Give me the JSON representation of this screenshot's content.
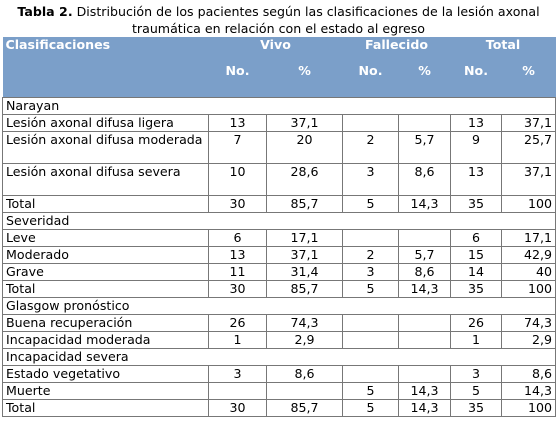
{
  "caption": {
    "label": "Tabla 2.",
    "text": " Distribución de los pacientes según las clasificaciones de la lesión axonal traumática en relación con el estado al egreso"
  },
  "header": {
    "col0": "Clasificaciones",
    "vivo": "Vivo",
    "fallecido": "Fallecido",
    "total": "Total",
    "no": "No.",
    "pct": "%"
  },
  "rows": [
    {
      "label": "Narayan",
      "section": true
    },
    {
      "label": "Lesión axonal difusa ligera",
      "v_no": "13",
      "v_pct": "37,1",
      "f_no": "",
      "f_pct": "",
      "t_no": "13",
      "t_pct": "37,1"
    },
    {
      "label": "Lesión axonal difusa moderada",
      "v_no": "7",
      "v_pct": "20",
      "f_no": "2",
      "f_pct": "5,7",
      "t_no": "9",
      "t_pct": "25,7",
      "tall": true
    },
    {
      "label": "Lesión axonal difusa severa",
      "v_no": "10",
      "v_pct": "28,6",
      "f_no": "3",
      "f_pct": "8,6",
      "t_no": "13",
      "t_pct": "37,1",
      "tall": true
    },
    {
      "label": "Total",
      "v_no": "30",
      "v_pct": "85,7",
      "f_no": "5",
      "f_pct": "14,3",
      "t_no": "35",
      "t_pct": "100"
    },
    {
      "label": "Severidad",
      "section": true
    },
    {
      "label": "Leve",
      "v_no": "6",
      "v_pct": "17,1",
      "f_no": "",
      "f_pct": "",
      "t_no": "6",
      "t_pct": "17,1"
    },
    {
      "label": "Moderado",
      "v_no": "13",
      "v_pct": "37,1",
      "f_no": "2",
      "f_pct": "5,7",
      "t_no": "15",
      "t_pct": "42,9"
    },
    {
      "label": "Grave",
      "v_no": "11",
      "v_pct": "31,4",
      "f_no": "3",
      "f_pct": "8,6",
      "t_no": "14",
      "t_pct": "40"
    },
    {
      "label": "Total",
      "v_no": "30",
      "v_pct": "85,7",
      "f_no": "5",
      "f_pct": "14,3",
      "t_no": "35",
      "t_pct": "100"
    },
    {
      "label": "Glasgow pronóstico",
      "section": true
    },
    {
      "label": "Buena recuperación",
      "v_no": "26",
      "v_pct": "74,3",
      "f_no": "",
      "f_pct": "",
      "t_no": "26",
      "t_pct": "74,3"
    },
    {
      "label": "Incapacidad moderada",
      "v_no": "1",
      "v_pct": "2,9",
      "f_no": "",
      "f_pct": "",
      "t_no": "1",
      "t_pct": "2,9"
    },
    {
      "label": "Incapacidad severa",
      "section": true
    },
    {
      "label": "Estado vegetativo",
      "v_no": "3",
      "v_pct": "8,6",
      "f_no": "",
      "f_pct": "",
      "t_no": "3",
      "t_pct": "8,6"
    },
    {
      "label": "Muerte",
      "v_no": "",
      "v_pct": "",
      "f_no": "5",
      "f_pct": "14,3",
      "t_no": "5",
      "t_pct": "14,3"
    },
    {
      "label": "Total",
      "v_no": "30",
      "v_pct": "85,7",
      "f_no": "5",
      "f_pct": "14,3",
      "t_no": "35",
      "t_pct": "100"
    }
  ]
}
